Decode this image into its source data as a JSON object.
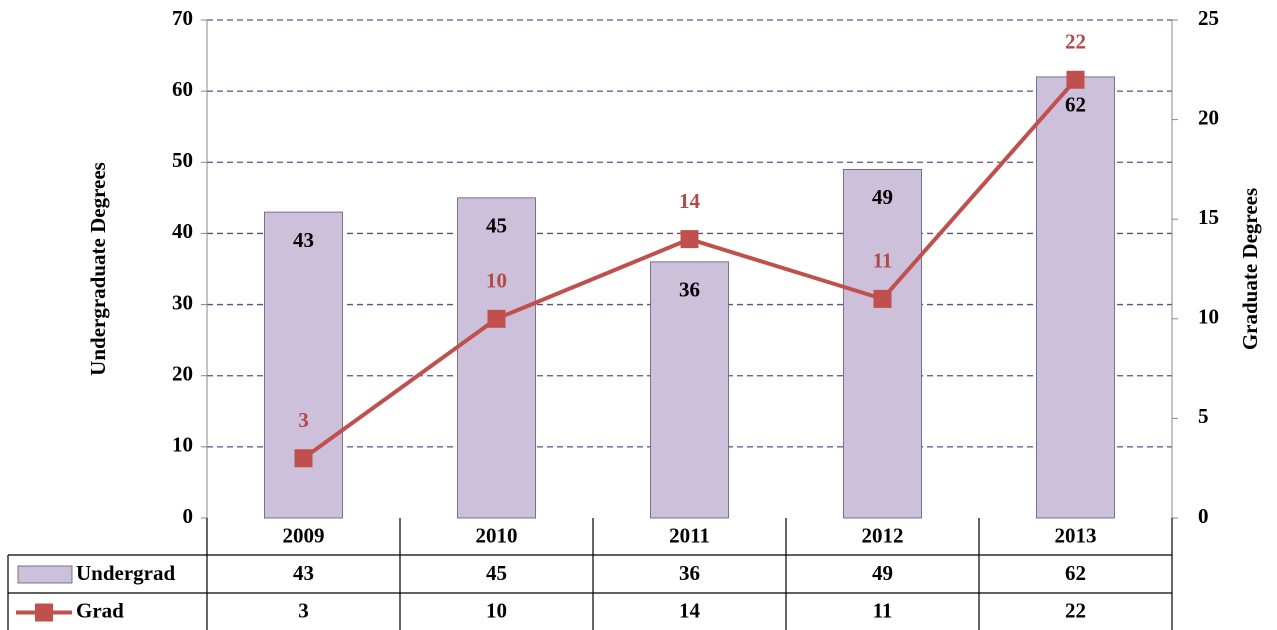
{
  "chart_data": {
    "type": "bar",
    "categories": [
      "2009",
      "2010",
      "2011",
      "2012",
      "2013"
    ],
    "series": [
      {
        "name": "Undergrad",
        "type": "bar",
        "color": "#ccc0da",
        "values": [
          43,
          45,
          36,
          49,
          62
        ]
      },
      {
        "name": "Grad",
        "type": "line",
        "color": "#c0504d",
        "axis": "y2",
        "values": [
          3,
          10,
          14,
          11,
          22
        ]
      }
    ],
    "y_label": "Undergraduate Degrees",
    "y2_label": "Graduate Degrees",
    "ylim": [
      0,
      70
    ],
    "yticks": [
      0,
      10,
      20,
      30,
      40,
      50,
      60,
      70
    ],
    "y2lim": [
      0,
      25
    ],
    "y2ticks": [
      0,
      5,
      10,
      15,
      20,
      25
    ],
    "grid": true
  }
}
